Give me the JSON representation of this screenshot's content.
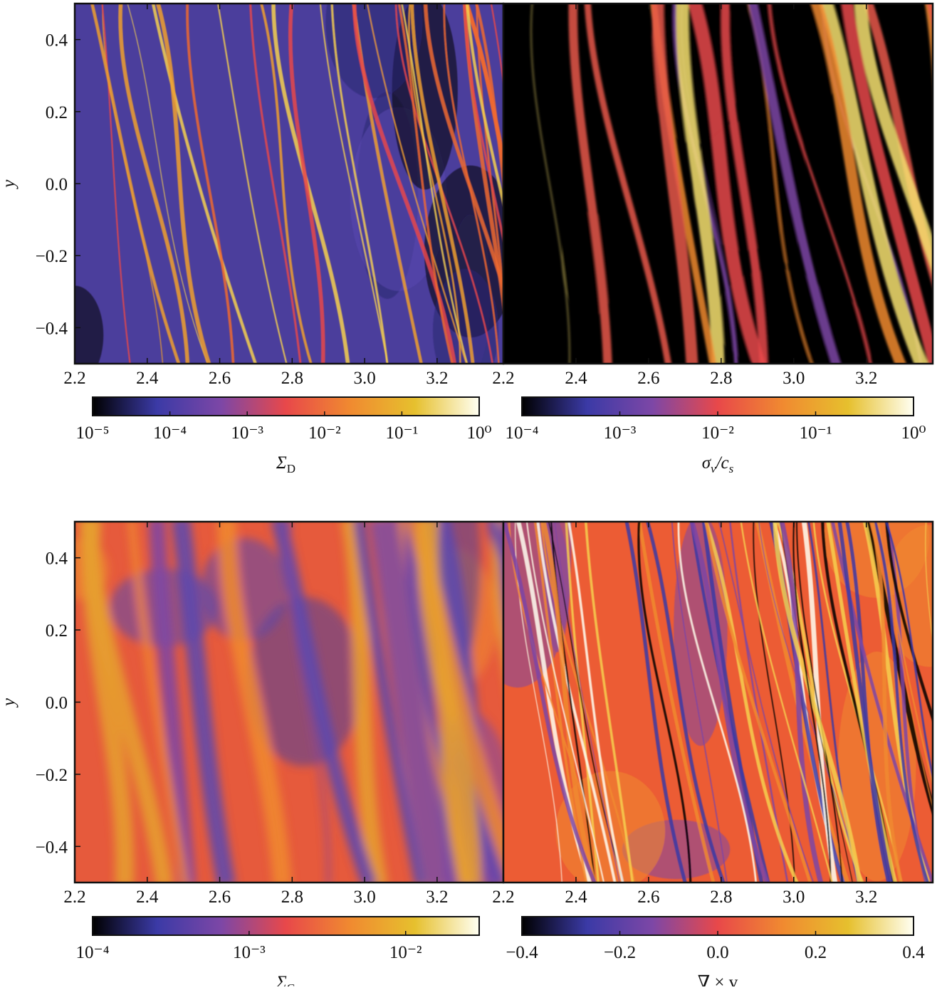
{
  "chart_data": [
    {
      "type": "heatmap",
      "xlim": [
        2.2,
        3.383
      ],
      "xticks": [
        2.2,
        2.4,
        2.6,
        2.8,
        {
          "value": 3,
          "label": "3.0"
        },
        3.2
      ],
      "ylim": [
        -0.5,
        0.5
      ],
      "yticks": [
        0.4,
        0.2,
        {
          "value": 0,
          "label": "0.0"
        },
        {
          "value": -0.2,
          "label": "−0.2"
        },
        {
          "value": -0.4,
          "label": "−0.4"
        }
      ],
      "ylabel": "y",
      "colorbar": {
        "label": [
          "Σ",
          "D"
        ],
        "scale": "log",
        "lim": [
          1e-05,
          1
        ],
        "ticks": [
          {
            "value": 1e-05,
            "label": "10⁻⁵"
          },
          {
            "value": 0.0001,
            "label": "10⁻⁴"
          },
          {
            "value": 0.001,
            "label": "10⁻³"
          },
          {
            "value": 0.01,
            "label": "10⁻²"
          },
          {
            "value": 0.1,
            "label": "10⁻¹"
          },
          {
            "value": 1,
            "label": "10⁰"
          }
        ],
        "colormap": [
          "#000000",
          "#3b3aa6",
          "#7d47a6",
          "#e8484a",
          "#f08a30",
          "#e6c02e",
          "#fffff2"
        ]
      }
    },
    {
      "type": "heatmap",
      "xlim": [
        2.2,
        3.383
      ],
      "xticks": [
        2.2,
        2.4,
        2.6,
        2.8,
        {
          "value": 3,
          "label": "3.0"
        },
        3.2
      ],
      "ylim": [
        -0.5,
        0.5
      ],
      "colorbar": {
        "label": [
          "σ",
          "v",
          "/c",
          "s"
        ],
        "scale": "log",
        "lim": [
          0.0001,
          1
        ],
        "ticks": [
          {
            "value": 0.0001,
            "label": "10⁻⁴"
          },
          {
            "value": 0.001,
            "label": "10⁻³"
          },
          {
            "value": 0.01,
            "label": "10⁻²"
          },
          {
            "value": 0.1,
            "label": "10⁻¹"
          },
          {
            "value": 1,
            "label": "10⁰"
          }
        ],
        "colormap": [
          "#000000",
          "#3b3aa6",
          "#7d47a6",
          "#e8484a",
          "#f08a30",
          "#e6c02e",
          "#fffff2"
        ]
      }
    },
    {
      "type": "heatmap",
      "xlim": [
        2.2,
        3.383
      ],
      "xticks": [
        2.2,
        2.4,
        2.6,
        2.8,
        {
          "value": 3,
          "label": "3.0"
        },
        3.2
      ],
      "ylim": [
        -0.5,
        0.5
      ],
      "yticks": [
        0.4,
        0.2,
        {
          "value": 0,
          "label": "0.0"
        },
        {
          "value": -0.2,
          "label": "−0.2"
        },
        {
          "value": -0.4,
          "label": "−0.4"
        }
      ],
      "ylabel": "y",
      "colorbar": {
        "label": [
          "Σ",
          "G"
        ],
        "scale": "log",
        "lim": [
          0.0001,
          0.0295
        ],
        "ticks": [
          {
            "value": 0.0001,
            "label": "10⁻⁴"
          },
          {
            "value": 0.001,
            "label": "10⁻³"
          },
          {
            "value": 0.01,
            "label": "10⁻²"
          }
        ],
        "colormap": [
          "#000000",
          "#3b3aa6",
          "#7d47a6",
          "#e8484a",
          "#f08a30",
          "#e6c02e",
          "#fffff2"
        ]
      }
    },
    {
      "type": "heatmap",
      "xlim": [
        2.2,
        3.383
      ],
      "xticks": [
        2.2,
        2.4,
        2.6,
        2.8,
        {
          "value": 3,
          "label": "3.0"
        },
        3.2
      ],
      "ylim": [
        -0.5,
        0.5
      ],
      "colorbar": {
        "label": [
          "∇ × v"
        ],
        "scale": "linear",
        "lim": [
          -0.4,
          0.4
        ],
        "ticks": [
          {
            "value": -0.4,
            "label": "−0.4"
          },
          {
            "value": -0.2,
            "label": "−0.2"
          },
          {
            "value": 0,
            "label": "0.0"
          },
          0.2,
          0.4
        ],
        "colormap": [
          "#000000",
          "#3b3aa6",
          "#7d47a6",
          "#e8484a",
          "#f08a30",
          "#e6c02e",
          "#fffff2"
        ]
      }
    }
  ]
}
